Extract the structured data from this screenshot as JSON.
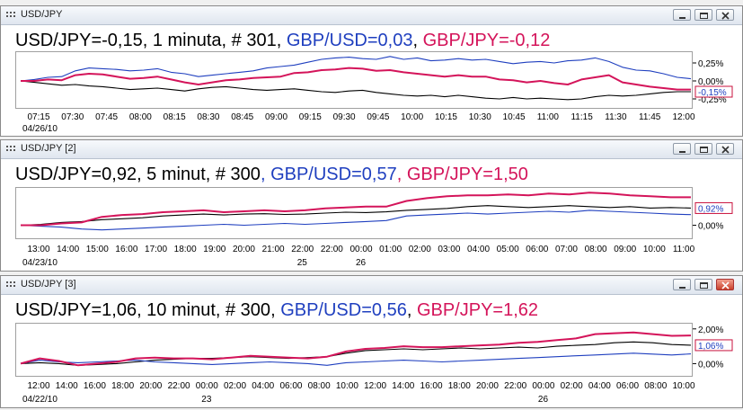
{
  "windows": [
    {
      "title": "USD/JPY",
      "heading": {
        "usdjpy": "USD/JPY=-0,15, 1 minuta, # 301",
        "gbpusd": "GBP/USD=0,03",
        "gbpjpy": "GBP/JPY=-0,12"
      },
      "chart_data": {
        "type": "line",
        "x_ticks": [
          "07:15",
          "07:30",
          "07:45",
          "08:00",
          "08:15",
          "08:30",
          "08:45",
          "09:00",
          "09:15",
          "09:30",
          "09:45",
          "10:00",
          "10:15",
          "10:30",
          "10:45",
          "11:00",
          "11:15",
          "11:30",
          "11:45",
          "12:00"
        ],
        "date_labels": [
          {
            "text": "04/26/10",
            "tick": 0
          }
        ],
        "y_tick_labels": [
          "0,25%",
          "0,00%",
          "-0,25%"
        ],
        "y_ticks": [
          0.25,
          0.0,
          -0.25
        ],
        "ylim": [
          -0.35,
          0.4
        ],
        "current_value_label": "-0,15%",
        "current_value": -0.15,
        "series": [
          {
            "name": "USD/JPY",
            "color": "#000000",
            "values": [
              0.0,
              -0.02,
              -0.04,
              -0.06,
              -0.05,
              -0.07,
              -0.08,
              -0.1,
              -0.12,
              -0.11,
              -0.1,
              -0.12,
              -0.14,
              -0.11,
              -0.09,
              -0.08,
              -0.1,
              -0.12,
              -0.13,
              -0.12,
              -0.11,
              -0.13,
              -0.15,
              -0.16,
              -0.14,
              -0.13,
              -0.16,
              -0.18,
              -0.2,
              -0.21,
              -0.2,
              -0.22,
              -0.2,
              -0.22,
              -0.24,
              -0.25,
              -0.23,
              -0.25,
              -0.24,
              -0.25,
              -0.26,
              -0.25,
              -0.22,
              -0.2,
              -0.21,
              -0.2,
              -0.18,
              -0.16,
              -0.15,
              -0.15
            ]
          },
          {
            "name": "GBP/USD",
            "color": "#1f3fbf",
            "values": [
              0.0,
              0.02,
              0.05,
              0.06,
              0.14,
              0.18,
              0.17,
              0.16,
              0.14,
              0.15,
              0.17,
              0.12,
              0.1,
              0.06,
              0.08,
              0.1,
              0.12,
              0.14,
              0.18,
              0.2,
              0.22,
              0.26,
              0.3,
              0.32,
              0.33,
              0.31,
              0.3,
              0.34,
              0.3,
              0.32,
              0.28,
              0.29,
              0.31,
              0.29,
              0.3,
              0.27,
              0.24,
              0.26,
              0.27,
              0.25,
              0.28,
              0.29,
              0.32,
              0.27,
              0.19,
              0.15,
              0.14,
              0.1,
              0.05,
              0.03
            ]
          },
          {
            "name": "GBP/JPY",
            "color": "#d4145a",
            "values": [
              0.0,
              0.0,
              0.02,
              0.01,
              0.08,
              0.1,
              0.09,
              0.06,
              0.03,
              0.04,
              0.06,
              0.02,
              -0.02,
              -0.05,
              -0.02,
              0.01,
              0.02,
              0.04,
              0.05,
              0.06,
              0.11,
              0.12,
              0.15,
              0.16,
              0.18,
              0.17,
              0.14,
              0.15,
              0.12,
              0.1,
              0.08,
              0.06,
              0.08,
              0.06,
              0.06,
              0.02,
              0.01,
              -0.02,
              0.0,
              -0.03,
              -0.05,
              0.02,
              0.05,
              0.08,
              -0.02,
              -0.05,
              -0.08,
              -0.1,
              -0.12,
              -0.12
            ]
          }
        ]
      }
    },
    {
      "title": "USD/JPY [2]",
      "heading": {
        "usdjpy": "USD/JPY=0,92, 5 minut, # 300",
        "gbpusd": "GBP/USD=0,57",
        "gbpjpy": "GBP/JPY=1,50"
      },
      "chart_data": {
        "type": "line",
        "x_ticks": [
          "13:00",
          "14:00",
          "15:00",
          "16:00",
          "17:00",
          "18:00",
          "19:00",
          "20:00",
          "21:00",
          "22:00",
          "22:00",
          "00:00",
          "01:00",
          "02:00",
          "03:00",
          "04:00",
          "05:00",
          "06:00",
          "07:00",
          "08:00",
          "09:00",
          "10:00",
          "11:00"
        ],
        "date_labels": [
          {
            "text": "04/23/10",
            "tick": 0
          },
          {
            "text": "25",
            "tick": 9
          },
          {
            "text": "26",
            "tick": 11
          }
        ],
        "y_tick_labels": [
          "0,00%"
        ],
        "y_ticks": [
          0.0
        ],
        "ylim": [
          -0.6,
          2.0
        ],
        "current_value_label": "0,92%",
        "current_value": 0.92,
        "series": [
          {
            "name": "USD/JPY",
            "color": "#000000",
            "values": [
              0.0,
              0.05,
              0.15,
              0.2,
              0.3,
              0.35,
              0.4,
              0.5,
              0.55,
              0.6,
              0.55,
              0.6,
              0.62,
              0.58,
              0.6,
              0.65,
              0.7,
              0.68,
              0.72,
              0.8,
              0.85,
              0.9,
              1.0,
              1.05,
              1.0,
              0.95,
              1.0,
              1.05,
              1.0,
              0.95,
              1.0,
              0.92,
              0.95,
              0.92
            ]
          },
          {
            "name": "GBP/USD",
            "color": "#1f3fbf",
            "values": [
              0.0,
              -0.05,
              -0.1,
              -0.2,
              -0.25,
              -0.2,
              -0.15,
              -0.1,
              -0.05,
              0.0,
              0.05,
              0.0,
              0.05,
              0.1,
              0.05,
              0.1,
              0.15,
              0.2,
              0.25,
              0.5,
              0.55,
              0.6,
              0.65,
              0.6,
              0.65,
              0.7,
              0.75,
              0.7,
              0.8,
              0.75,
              0.7,
              0.65,
              0.6,
              0.57
            ]
          },
          {
            "name": "GBP/JPY",
            "color": "#d4145a",
            "values": [
              0.0,
              0.0,
              0.1,
              0.15,
              0.45,
              0.55,
              0.6,
              0.7,
              0.75,
              0.8,
              0.7,
              0.75,
              0.8,
              0.75,
              0.8,
              0.9,
              0.95,
              1.0,
              1.0,
              1.3,
              1.45,
              1.55,
              1.6,
              1.6,
              1.65,
              1.6,
              1.7,
              1.65,
              1.75,
              1.7,
              1.6,
              1.55,
              1.5,
              1.5
            ]
          }
        ]
      }
    },
    {
      "title": "USD/JPY [3]",
      "heading": {
        "usdjpy": "USD/JPY=1,06, 10 minut, # 300",
        "gbpusd": "GBP/USD=0,56",
        "gbpjpy": "GBP/JPY=1,62"
      },
      "chart_data": {
        "type": "line",
        "x_ticks": [
          "12:00",
          "14:00",
          "16:00",
          "18:00",
          "20:00",
          "22:00",
          "00:00",
          "02:00",
          "04:00",
          "06:00",
          "08:00",
          "10:00",
          "12:00",
          "14:00",
          "16:00",
          "18:00",
          "20:00",
          "22:00",
          "00:00",
          "02:00",
          "04:00",
          "06:00",
          "08:00",
          "10:00"
        ],
        "date_labels": [
          {
            "text": "04/22/10",
            "tick": 0
          },
          {
            "text": "23",
            "tick": 6
          },
          {
            "text": "26",
            "tick": 18
          }
        ],
        "y_tick_labels": [
          "2,00%",
          "0,00%"
        ],
        "y_ticks": [
          2.0,
          0.0
        ],
        "ylim": [
          -0.6,
          2.3
        ],
        "current_value_label": "1,06%",
        "current_value": 1.06,
        "series": [
          {
            "name": "USD/JPY",
            "color": "#000000",
            "values": [
              0.0,
              0.05,
              0.0,
              -0.1,
              -0.05,
              0.0,
              0.1,
              0.2,
              0.25,
              0.3,
              0.3,
              0.35,
              0.4,
              0.35,
              0.3,
              0.35,
              0.4,
              0.6,
              0.75,
              0.8,
              0.85,
              0.8,
              0.85,
              0.9,
              0.85,
              0.9,
              0.95,
              0.9,
              1.0,
              1.05,
              1.1,
              1.2,
              1.25,
              1.2,
              1.1,
              1.06
            ]
          },
          {
            "name": "GBP/USD",
            "color": "#1f3fbf",
            "values": [
              0.0,
              0.2,
              0.1,
              0.05,
              0.1,
              0.15,
              0.2,
              0.1,
              0.05,
              0.0,
              -0.05,
              0.0,
              0.05,
              0.1,
              0.05,
              0.0,
              -0.1,
              0.05,
              0.1,
              0.15,
              0.2,
              0.15,
              0.1,
              0.15,
              0.2,
              0.25,
              0.3,
              0.35,
              0.4,
              0.45,
              0.5,
              0.55,
              0.6,
              0.55,
              0.5,
              0.56
            ]
          },
          {
            "name": "GBP/JPY",
            "color": "#d4145a",
            "values": [
              0.0,
              0.3,
              0.15,
              -0.1,
              0.0,
              0.1,
              0.3,
              0.35,
              0.3,
              0.3,
              0.25,
              0.35,
              0.45,
              0.4,
              0.35,
              0.3,
              0.4,
              0.7,
              0.85,
              0.9,
              1.0,
              0.95,
              0.95,
              1.0,
              1.05,
              1.1,
              1.2,
              1.25,
              1.35,
              1.45,
              1.7,
              1.75,
              1.8,
              1.7,
              1.6,
              1.62
            ]
          }
        ]
      }
    }
  ]
}
